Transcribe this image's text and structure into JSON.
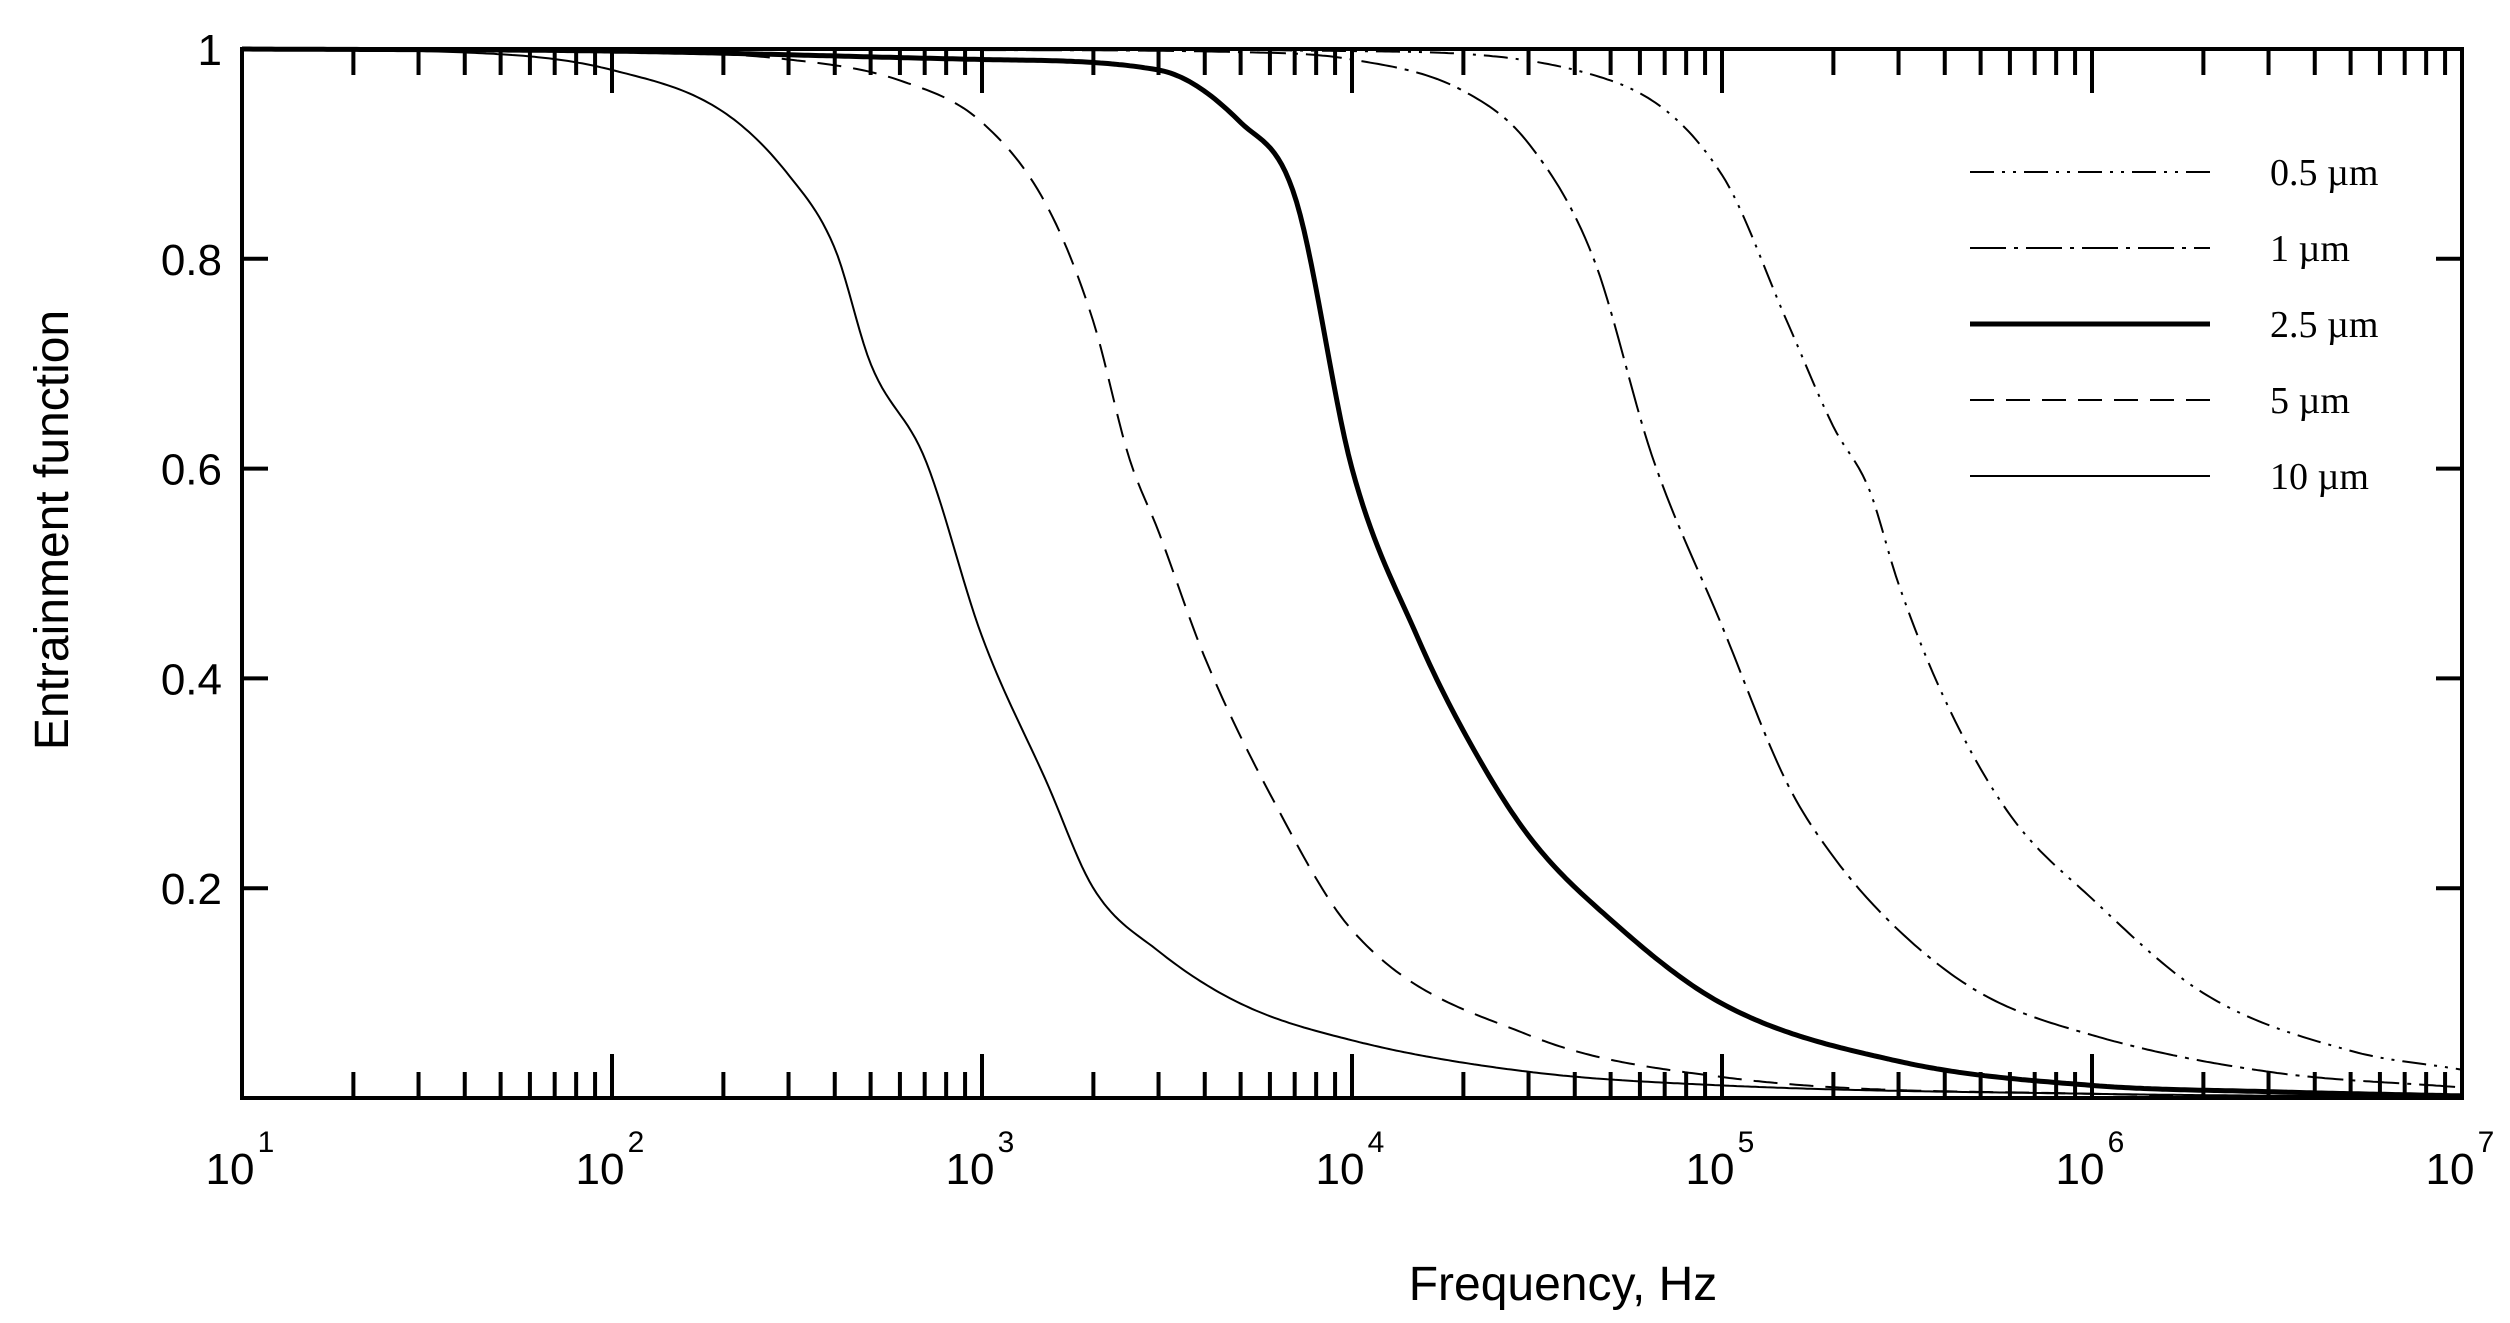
{
  "chart_data": {
    "type": "line",
    "xlabel": "Frequency, Hz",
    "ylabel": "Entrainment function",
    "x_scale": "log",
    "xlim": [
      10,
      10000000
    ],
    "ylim": [
      0,
      1
    ],
    "x_ticks": [
      {
        "base": "10",
        "exp": "1"
      },
      {
        "base": "10",
        "exp": "2"
      },
      {
        "base": "10",
        "exp": "3"
      },
      {
        "base": "10",
        "exp": "4"
      },
      {
        "base": "10",
        "exp": "5"
      },
      {
        "base": "10",
        "exp": "6"
      },
      {
        "base": "10",
        "exp": "7"
      }
    ],
    "y_ticks": [
      "0.2",
      "0.4",
      "0.6",
      "0.8",
      "1"
    ],
    "grid": false,
    "legend_position": "top-right",
    "series": [
      {
        "name": "0.5 µm",
        "style": "dash-dot-dot",
        "x": [
          10,
          1000,
          10000,
          50000,
          100000,
          150000,
          200000,
          250000,
          300000,
          400000,
          600000,
          1000000,
          2000000,
          5000000,
          10000000
        ],
        "y": [
          1.0,
          1.0,
          0.998,
          0.97,
          0.88,
          0.74,
          0.64,
          0.58,
          0.49,
          0.38,
          0.27,
          0.19,
          0.1,
          0.045,
          0.027
        ]
      },
      {
        "name": "1 µm",
        "style": "dash-dot",
        "x": [
          10,
          1000,
          5000,
          10000,
          20000,
          30000,
          45000,
          65000,
          100000,
          150000,
          200000,
          300000,
          500000,
          1000000,
          3000000,
          10000000
        ],
        "y": [
          1.0,
          0.999,
          0.997,
          0.99,
          0.96,
          0.91,
          0.8,
          0.61,
          0.45,
          0.3,
          0.23,
          0.16,
          0.1,
          0.06,
          0.025,
          0.01
        ]
      },
      {
        "name": "2.5 µm",
        "style": "thick-solid",
        "x": [
          10,
          100,
          1000,
          3000,
          5000,
          7000,
          10000,
          15000,
          20000,
          30000,
          50000,
          100000,
          300000,
          1000000,
          3000000,
          10000000
        ],
        "y": [
          1.0,
          0.998,
          0.99,
          0.98,
          0.93,
          0.86,
          0.6,
          0.44,
          0.35,
          0.25,
          0.17,
          0.09,
          0.035,
          0.012,
          0.006,
          0.002
        ]
      },
      {
        "name": "5 µm",
        "style": "dashed",
        "x": [
          10,
          100,
          300,
          600,
          1000,
          1500,
          2000,
          2500,
          3000,
          4000,
          6000,
          10000,
          30000,
          100000,
          1000000,
          10000000
        ],
        "y": [
          1.0,
          0.998,
          0.99,
          0.97,
          0.93,
          0.85,
          0.74,
          0.61,
          0.54,
          0.42,
          0.29,
          0.16,
          0.06,
          0.02,
          0.004,
          0.001
        ]
      },
      {
        "name": "10 µm",
        "style": "solid",
        "x": [
          10,
          50,
          100,
          200,
          300,
          400,
          500,
          700,
          1000,
          1500,
          2000,
          3000,
          5000,
          10000,
          30000,
          100000,
          1000000,
          10000000
        ],
        "y": [
          1.0,
          0.995,
          0.98,
          0.94,
          0.88,
          0.81,
          0.7,
          0.61,
          0.44,
          0.3,
          0.2,
          0.14,
          0.09,
          0.055,
          0.025,
          0.012,
          0.004,
          0.001
        ]
      }
    ]
  }
}
